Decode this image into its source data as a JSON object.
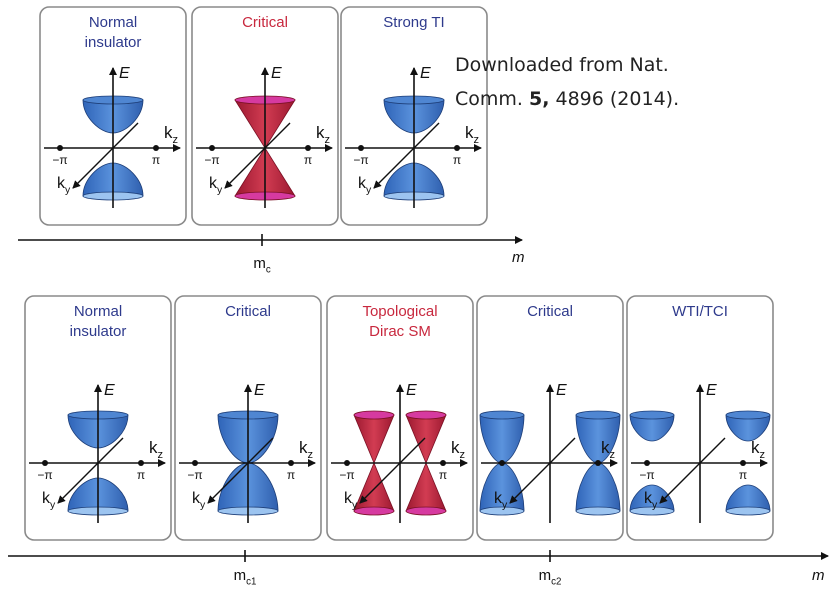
{
  "citation": {
    "line1": "Downloaded from Nat.",
    "prefix": "Comm.",
    "volume": "5,",
    "suffix": "4896 (2014)."
  },
  "top_panels": [
    {
      "title": [
        "Normal",
        "insulator"
      ],
      "color": "#2e3a8c",
      "e": "E",
      "kz": [
        "k",
        "z"
      ],
      "ky": [
        "k",
        "y"
      ],
      "neg_pi": "−π",
      "pi": "π"
    },
    {
      "title": [
        "Critical"
      ],
      "color": "#c8283e",
      "e": "E",
      "kz": [
        "k",
        "z"
      ],
      "ky": [
        "k",
        "y"
      ],
      "neg_pi": "−π",
      "pi": "π"
    },
    {
      "title": [
        "Strong TI"
      ],
      "color": "#2e3a8c",
      "e": "E",
      "kz": [
        "k",
        "z"
      ],
      "ky": [
        "k",
        "y"
      ],
      "neg_pi": "−π",
      "pi": "π"
    }
  ],
  "top_axis": {
    "ticks": [
      [
        "m",
        "c"
      ]
    ],
    "end_label": "m"
  },
  "bottom_panels": [
    {
      "title": [
        "Normal",
        "insulator"
      ],
      "color": "#2e3a8c",
      "e": "E",
      "kz": [
        "k",
        "z"
      ],
      "ky": [
        "k",
        "y"
      ],
      "neg_pi": "−π",
      "pi": "π"
    },
    {
      "title": [
        "Critical"
      ],
      "color": "#2e3a8c",
      "e": "E",
      "kz": [
        "k",
        "z"
      ],
      "ky": [
        "k",
        "y"
      ],
      "neg_pi": "−π",
      "pi": "π"
    },
    {
      "title": [
        "Topological",
        "Dirac SM"
      ],
      "color": "#c8283e",
      "e": "E",
      "kz": [
        "k",
        "z"
      ],
      "ky": [
        "k",
        "y"
      ],
      "neg_pi": "−π",
      "pi": "π"
    },
    {
      "title": [
        "Critical"
      ],
      "color": "#2e3a8c",
      "e": "E",
      "kz": [
        "k",
        "z"
      ],
      "ky": [
        "k",
        "y"
      ]
    },
    {
      "title": [
        "WTI/TCI"
      ],
      "color": "#2e3a8c",
      "e": "E",
      "kz": [
        "k",
        "z"
      ],
      "ky": [
        "k",
        "y"
      ],
      "neg_pi": "−π",
      "pi": "π"
    }
  ],
  "bottom_axis": {
    "ticks": [
      [
        "m",
        "c1"
      ],
      [
        "m",
        "c2"
      ]
    ],
    "end_label": "m"
  }
}
